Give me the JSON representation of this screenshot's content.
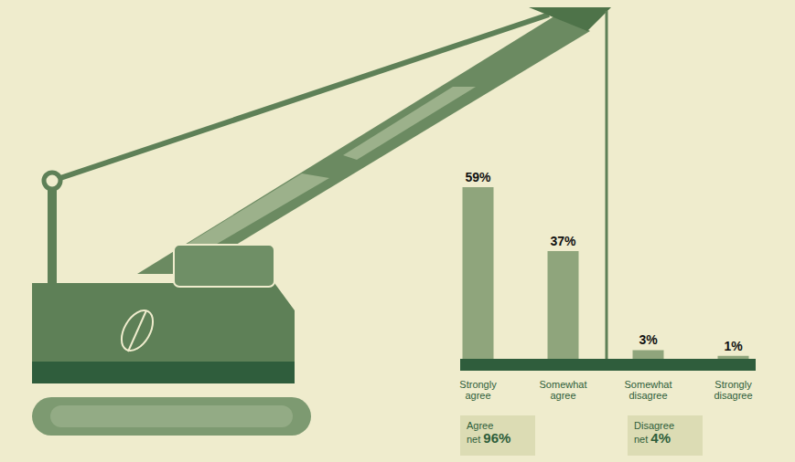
{
  "chart_data": {
    "type": "bar",
    "categories": [
      "Strongly agree",
      "Somewhat agree",
      "Somewhat disagree",
      "Strongly disagree"
    ],
    "values": [
      59,
      37,
      3,
      1
    ],
    "value_labels": [
      "59%",
      "37%",
      "3%",
      "1%"
    ],
    "color": "#8fa57c",
    "ylim": [
      0,
      59
    ],
    "grid": false,
    "data_labels": true,
    "tick_labels": "x",
    "annotations": [
      {
        "label": "Agree net",
        "value_label": "96%"
      },
      {
        "label": "Disagree net",
        "value_label": "4%"
      }
    ]
  }
}
